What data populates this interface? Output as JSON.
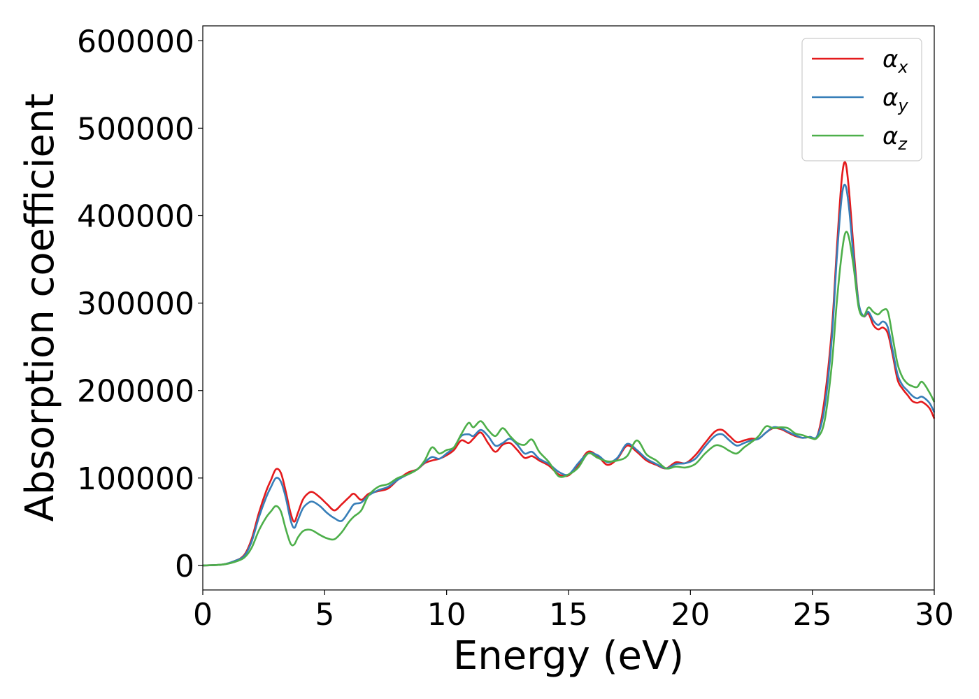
{
  "chart_data": {
    "type": "line",
    "title": "",
    "xlabel": "Energy (eV)",
    "ylabel": "Absorption coefficient",
    "xlim": [
      0,
      30
    ],
    "ylim": [
      -28000,
      617000
    ],
    "xticks": [
      0,
      5,
      10,
      15,
      20,
      25,
      30
    ],
    "yticks": [
      0,
      100000,
      200000,
      300000,
      400000,
      500000,
      600000
    ],
    "xtick_labels": [
      "0",
      "5",
      "10",
      "15",
      "20",
      "25",
      "30"
    ],
    "ytick_labels": [
      "0",
      "100000",
      "200000",
      "300000",
      "400000",
      "500000",
      "600000"
    ],
    "grid": false,
    "legend": {
      "position": "top-right"
    },
    "series": [
      {
        "name": "α_x",
        "label_main": "α",
        "label_sub": "x",
        "color": "#e41a1c",
        "x": [
          0,
          0.8,
          1.3,
          1.7,
          2.0,
          2.3,
          2.6,
          2.8,
          3.0,
          3.2,
          3.4,
          3.6,
          3.75,
          3.9,
          4.1,
          4.3,
          4.5,
          4.8,
          5.1,
          5.4,
          5.7,
          6.0,
          6.2,
          6.5,
          6.8,
          7.2,
          7.6,
          8.0,
          8.4,
          8.8,
          9.1,
          9.4,
          9.7,
          10.0,
          10.3,
          10.6,
          10.9,
          11.1,
          11.4,
          11.7,
          12.0,
          12.3,
          12.6,
          12.9,
          13.2,
          13.5,
          13.8,
          14.2,
          14.6,
          15.0,
          15.4,
          15.8,
          16.2,
          16.6,
          17.0,
          17.4,
          17.8,
          18.2,
          18.6,
          19.0,
          19.4,
          19.8,
          20.2,
          20.6,
          21.0,
          21.3,
          21.6,
          21.9,
          22.2,
          22.5,
          22.8,
          23.1,
          23.4,
          23.7,
          24.0,
          24.3,
          24.6,
          24.9,
          25.2,
          25.5,
          25.8,
          26.0,
          26.2,
          26.35,
          26.5,
          26.7,
          26.9,
          27.1,
          27.3,
          27.5,
          27.7,
          27.9,
          28.1,
          28.3,
          28.5,
          28.7,
          28.9,
          29.1,
          29.3,
          29.5,
          29.8,
          30.0
        ],
        "values": [
          0,
          1000,
          5000,
          12000,
          30000,
          60000,
          85000,
          98000,
          110000,
          106000,
          85000,
          60000,
          50000,
          60000,
          75000,
          82000,
          84000,
          78000,
          70000,
          63000,
          70000,
          78000,
          82000,
          75000,
          82000,
          85000,
          88000,
          98000,
          106000,
          110000,
          117000,
          120000,
          122000,
          126000,
          132000,
          143000,
          140000,
          145000,
          152000,
          140000,
          130000,
          138000,
          140000,
          132000,
          123000,
          125000,
          120000,
          114000,
          104000,
          103000,
          115000,
          130000,
          125000,
          115000,
          122000,
          137000,
          130000,
          120000,
          115000,
          111000,
          118000,
          117000,
          126000,
          140000,
          153000,
          155000,
          148000,
          141000,
          143000,
          145000,
          145000,
          152000,
          157000,
          156000,
          152000,
          148000,
          146000,
          147000,
          148000,
          190000,
          270000,
          360000,
          440000,
          461000,
          430000,
          360000,
          300000,
          285000,
          288000,
          275000,
          270000,
          272000,
          265000,
          240000,
          212000,
          202000,
          195000,
          188000,
          186000,
          187000,
          180000,
          168000
        ]
      },
      {
        "name": "α_y",
        "label_main": "α",
        "label_sub": "y",
        "color": "#377eb8",
        "x": [
          0,
          0.8,
          1.3,
          1.7,
          2.0,
          2.3,
          2.6,
          2.8,
          3.0,
          3.2,
          3.4,
          3.6,
          3.75,
          3.9,
          4.1,
          4.3,
          4.5,
          4.8,
          5.1,
          5.4,
          5.7,
          6.0,
          6.2,
          6.5,
          6.8,
          7.2,
          7.6,
          8.0,
          8.4,
          8.8,
          9.1,
          9.4,
          9.7,
          10.0,
          10.3,
          10.6,
          10.9,
          11.1,
          11.4,
          11.7,
          12.0,
          12.3,
          12.6,
          12.9,
          13.2,
          13.5,
          13.8,
          14.2,
          14.6,
          15.0,
          15.4,
          15.8,
          16.2,
          16.6,
          17.0,
          17.4,
          17.8,
          18.2,
          18.6,
          19.0,
          19.4,
          19.8,
          20.2,
          20.6,
          21.0,
          21.3,
          21.6,
          21.9,
          22.2,
          22.5,
          22.8,
          23.1,
          23.4,
          23.7,
          24.0,
          24.3,
          24.6,
          24.9,
          25.2,
          25.5,
          25.8,
          26.0,
          26.2,
          26.35,
          26.5,
          26.7,
          26.9,
          27.1,
          27.3,
          27.5,
          27.7,
          27.9,
          28.1,
          28.3,
          28.5,
          28.7,
          28.9,
          29.1,
          29.3,
          29.5,
          29.8,
          30.0
        ],
        "values": [
          0,
          1000,
          5000,
          11000,
          27000,
          55000,
          78000,
          90000,
          100000,
          96000,
          78000,
          52000,
          43000,
          52000,
          65000,
          71000,
          73000,
          68000,
          60000,
          54000,
          51000,
          62000,
          70000,
          72000,
          80000,
          86000,
          90000,
          98000,
          104000,
          110000,
          118000,
          124000,
          122000,
          128000,
          135000,
          148000,
          150000,
          148000,
          155000,
          148000,
          137000,
          140000,
          145000,
          138000,
          128000,
          130000,
          122000,
          116000,
          107000,
          104000,
          117000,
          128000,
          126000,
          118000,
          123000,
          139000,
          132000,
          122000,
          116000,
          111000,
          116000,
          117000,
          122000,
          136000,
          148000,
          150000,
          143000,
          137000,
          140000,
          143000,
          145000,
          152000,
          158000,
          157000,
          153000,
          149000,
          146000,
          147000,
          148000,
          180000,
          260000,
          350000,
          420000,
          435000,
          410000,
          350000,
          300000,
          285000,
          290000,
          280000,
          275000,
          279000,
          272000,
          245000,
          218000,
          206000,
          200000,
          194000,
          191000,
          193000,
          186000,
          175000
        ]
      },
      {
        "name": "α_z",
        "label_main": "α",
        "label_sub": "z",
        "color": "#4daf4a",
        "x": [
          0,
          0.8,
          1.3,
          1.7,
          2.0,
          2.3,
          2.6,
          2.8,
          3.0,
          3.2,
          3.4,
          3.6,
          3.75,
          3.9,
          4.1,
          4.3,
          4.5,
          4.8,
          5.1,
          5.4,
          5.7,
          6.0,
          6.2,
          6.5,
          6.8,
          7.2,
          7.6,
          8.0,
          8.4,
          8.8,
          9.1,
          9.4,
          9.7,
          10.0,
          10.3,
          10.6,
          10.9,
          11.1,
          11.4,
          11.7,
          12.0,
          12.3,
          12.6,
          12.9,
          13.2,
          13.5,
          13.8,
          14.2,
          14.6,
          15.0,
          15.4,
          15.8,
          16.2,
          16.6,
          17.0,
          17.4,
          17.8,
          18.2,
          18.6,
          19.0,
          19.4,
          19.8,
          20.2,
          20.6,
          21.0,
          21.3,
          21.6,
          21.9,
          22.2,
          22.5,
          22.8,
          23.1,
          23.4,
          23.7,
          24.0,
          24.3,
          24.6,
          24.9,
          25.2,
          25.5,
          25.8,
          26.0,
          26.2,
          26.35,
          26.5,
          26.7,
          26.9,
          27.1,
          27.3,
          27.5,
          27.7,
          27.9,
          28.1,
          28.3,
          28.5,
          28.7,
          28.9,
          29.1,
          29.3,
          29.5,
          29.8,
          30.0
        ],
        "values": [
          0,
          1000,
          4000,
          9000,
          20000,
          40000,
          55000,
          62000,
          68000,
          62000,
          42000,
          25000,
          24000,
          32000,
          39000,
          41000,
          40000,
          35000,
          31000,
          30000,
          38000,
          50000,
          56000,
          63000,
          80000,
          90000,
          93000,
          100000,
          104000,
          110000,
          120000,
          135000,
          128000,
          132000,
          135000,
          150000,
          163000,
          158000,
          165000,
          155000,
          148000,
          157000,
          148000,
          140000,
          138000,
          144000,
          130000,
          118000,
          102000,
          104000,
          112000,
          128000,
          123000,
          119000,
          120000,
          125000,
          143000,
          127000,
          120000,
          111000,
          113000,
          112000,
          116000,
          128000,
          137000,
          136000,
          131000,
          128000,
          135000,
          141000,
          148000,
          159000,
          157000,
          158000,
          157000,
          151000,
          149000,
          146000,
          146000,
          165000,
          230000,
          300000,
          355000,
          380000,
          375000,
          340000,
          295000,
          285000,
          295000,
          290000,
          287000,
          292000,
          290000,
          260000,
          230000,
          215000,
          208000,
          205000,
          204000,
          210000,
          198000,
          187000
        ]
      }
    ]
  }
}
